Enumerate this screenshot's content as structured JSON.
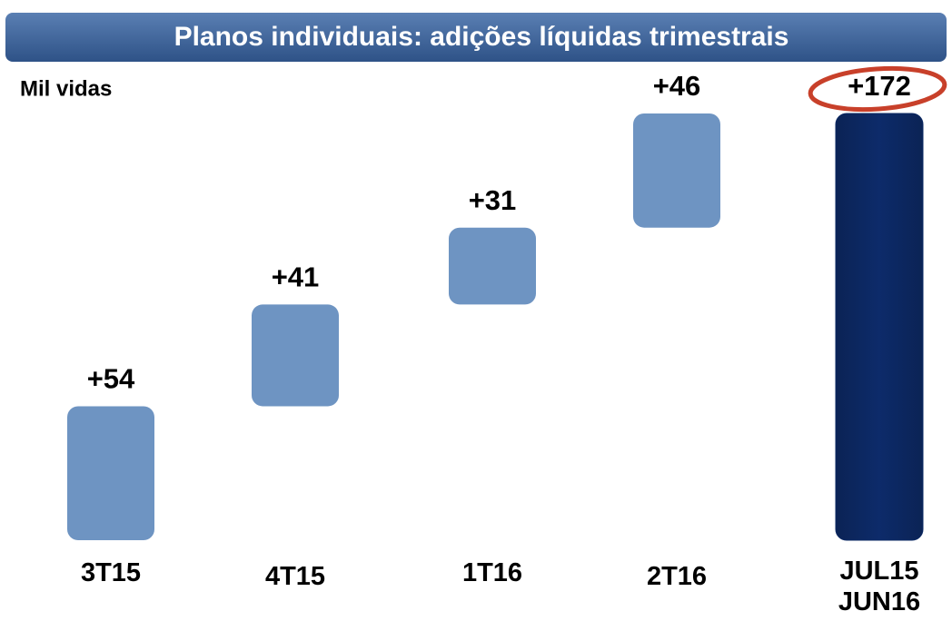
{
  "chart_data": {
    "type": "waterfall",
    "title": "Planos individuais: adições líquidas trimestrais",
    "subtitle": "Mil vidas",
    "categories": [
      "3T15",
      "4T15",
      "1T16",
      "2T16",
      "JUL15 JUN16"
    ],
    "values": [
      54,
      41,
      31,
      46,
      172
    ],
    "value_labels": [
      "+54",
      "+41",
      "+31",
      "+46",
      "+172"
    ],
    "totals": [
      false,
      false,
      false,
      false,
      true
    ],
    "color": "#6e94c2",
    "total_color": "#0b2863"
  }
}
